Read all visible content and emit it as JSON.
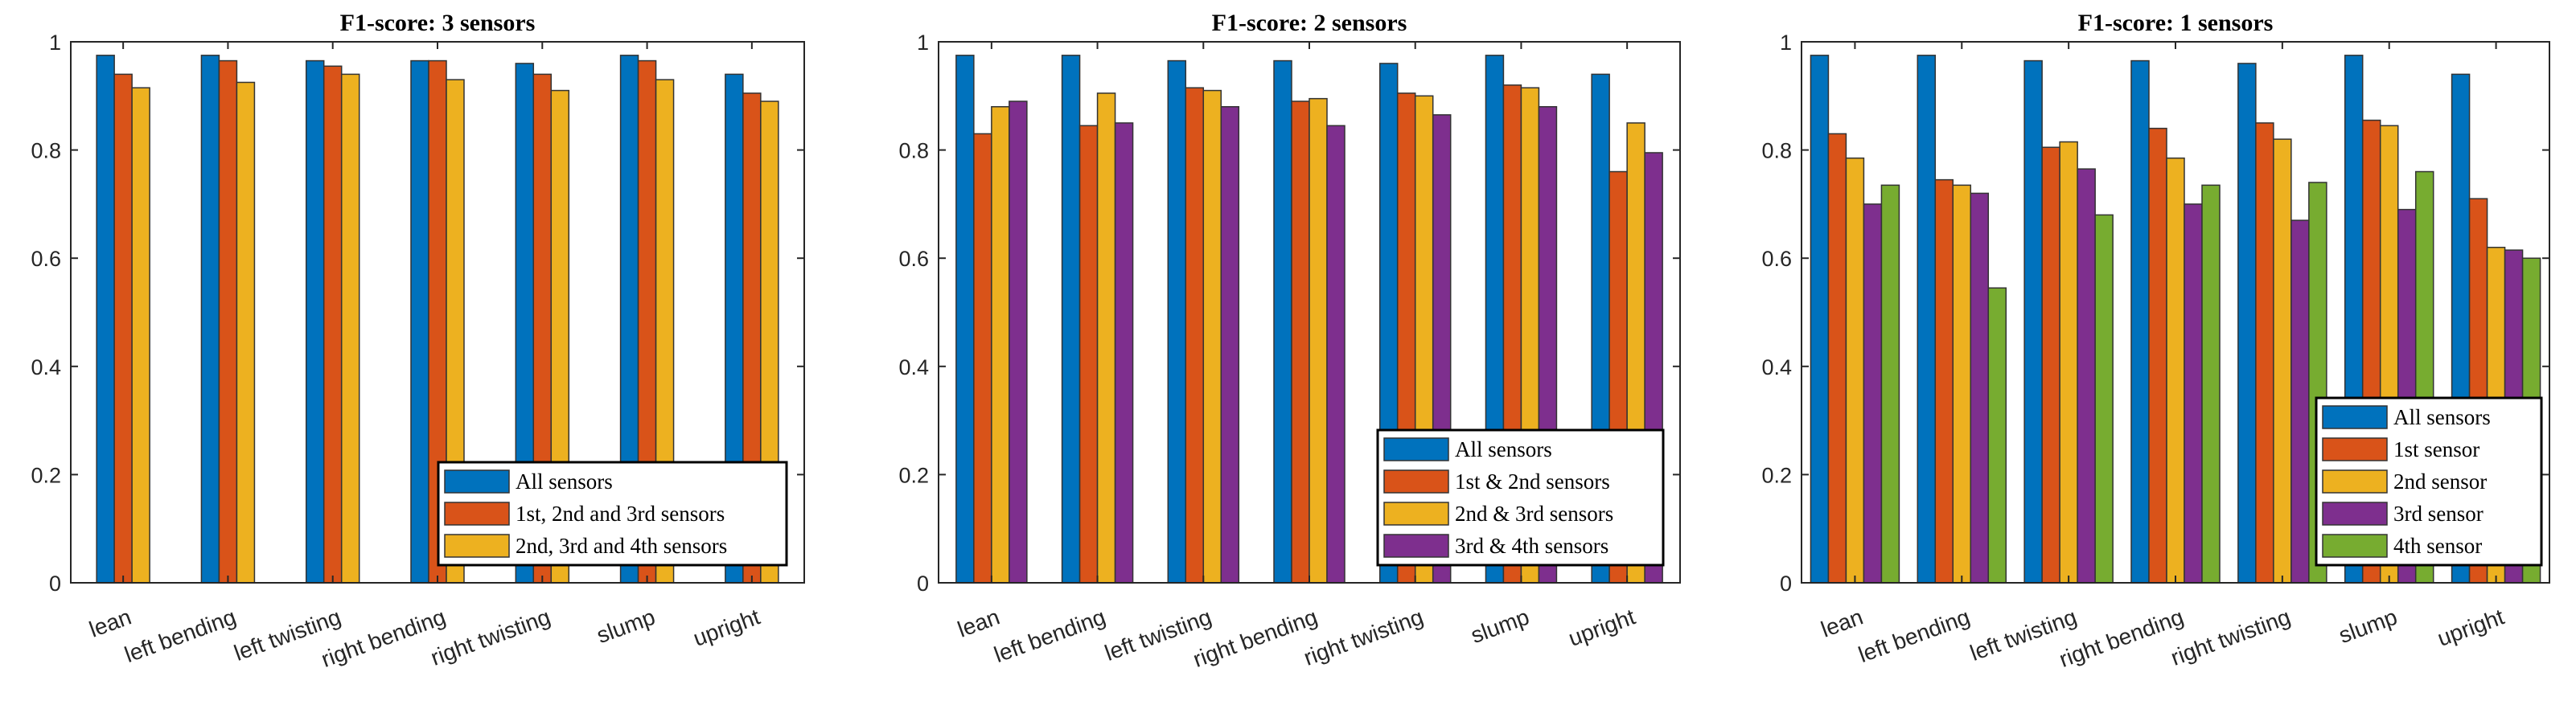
{
  "chart_data": [
    {
      "type": "bar",
      "title": "F1-score: 3 sensors",
      "categories": [
        "lean",
        "left bending",
        "left twisting",
        "right bending",
        "right twisting",
        "slump",
        "upright"
      ],
      "ylim": [
        0,
        1
      ],
      "yticks": [
        "0",
        "0.2",
        "0.4",
        "0.6",
        "0.8",
        "1"
      ],
      "legend_position": "bottom-right",
      "series": [
        {
          "name": "All sensors",
          "color": "#0072BD",
          "values": [
            0.975,
            0.975,
            0.965,
            0.965,
            0.96,
            0.975,
            0.94
          ]
        },
        {
          "name": "1st, 2nd and 3rd sensors",
          "color": "#D95319",
          "values": [
            0.94,
            0.965,
            0.955,
            0.965,
            0.94,
            0.965,
            0.905
          ]
        },
        {
          "name": "2nd, 3rd and 4th sensors",
          "color": "#EDB120",
          "values": [
            0.915,
            0.925,
            0.94,
            0.93,
            0.91,
            0.93,
            0.89
          ]
        }
      ]
    },
    {
      "type": "bar",
      "title": "F1-score: 2 sensors",
      "categories": [
        "lean",
        "left bending",
        "left twisting",
        "right bending",
        "right twisting",
        "slump",
        "upright"
      ],
      "ylim": [
        0,
        1
      ],
      "yticks": [
        "0",
        "0.2",
        "0.4",
        "0.6",
        "0.8",
        "1"
      ],
      "legend_position": "bottom-right",
      "series": [
        {
          "name": "All sensors",
          "color": "#0072BD",
          "values": [
            0.975,
            0.975,
            0.965,
            0.965,
            0.96,
            0.975,
            0.94
          ]
        },
        {
          "name": "1st & 2nd sensors",
          "color": "#D95319",
          "values": [
            0.83,
            0.845,
            0.915,
            0.89,
            0.905,
            0.92,
            0.76
          ]
        },
        {
          "name": "2nd & 3rd sensors",
          "color": "#EDB120",
          "values": [
            0.88,
            0.905,
            0.91,
            0.895,
            0.9,
            0.915,
            0.85
          ]
        },
        {
          "name": "3rd & 4th sensors",
          "color": "#7E2F8E",
          "values": [
            0.89,
            0.85,
            0.88,
            0.845,
            0.865,
            0.88,
            0.795
          ]
        }
      ]
    },
    {
      "type": "bar",
      "title": "F1-score: 1 sensors",
      "categories": [
        "lean",
        "left bending",
        "left twisting",
        "right bending",
        "right twisting",
        "slump",
        "upright"
      ],
      "ylim": [
        0,
        1
      ],
      "yticks": [
        "0",
        "0.2",
        "0.4",
        "0.6",
        "0.8",
        "1"
      ],
      "legend_position": "bottom-right",
      "series": [
        {
          "name": "All sensors",
          "color": "#0072BD",
          "values": [
            0.975,
            0.975,
            0.965,
            0.965,
            0.96,
            0.975,
            0.94
          ]
        },
        {
          "name": "1st sensor",
          "color": "#D95319",
          "values": [
            0.83,
            0.745,
            0.805,
            0.84,
            0.85,
            0.855,
            0.71
          ]
        },
        {
          "name": "2nd sensor",
          "color": "#EDB120",
          "values": [
            0.785,
            0.735,
            0.815,
            0.785,
            0.82,
            0.845,
            0.62
          ]
        },
        {
          "name": "3rd sensor",
          "color": "#7E2F8E",
          "values": [
            0.7,
            0.72,
            0.765,
            0.7,
            0.67,
            0.69,
            0.615
          ]
        },
        {
          "name": "4th sensor",
          "color": "#77AC30",
          "values": [
            0.735,
            0.545,
            0.68,
            0.735,
            0.74,
            0.76,
            0.6
          ]
        }
      ]
    }
  ]
}
